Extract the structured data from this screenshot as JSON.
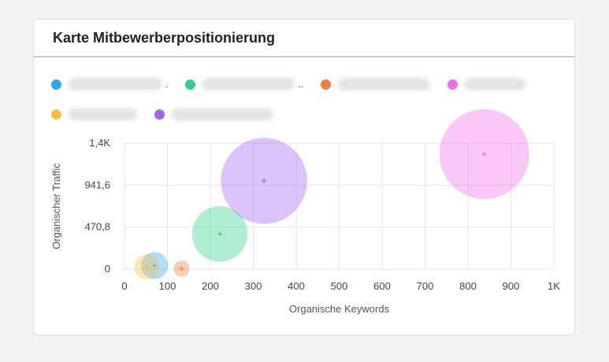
{
  "card": {
    "title": "Karte Mitbewerberpositionierung"
  },
  "legend": {
    "rows": [
      [
        {
          "color": "#2ea8f5",
          "suffix": "."
        },
        {
          "color": "#2ed18a",
          "suffix": ".."
        },
        {
          "color": "#f47c3c",
          "suffix": ""
        },
        {
          "color": "#ee6ee8",
          "suffix": ""
        }
      ],
      [
        {
          "color": "#f9bf3b",
          "suffix": ""
        },
        {
          "color": "#a363f2",
          "suffix": ""
        }
      ]
    ]
  },
  "chart_data": {
    "type": "scatter",
    "title": "",
    "xlabel": "Organische Keywords",
    "ylabel": "Organischer Traffic",
    "xlim": [
      0,
      1000
    ],
    "ylim": [
      0,
      1412.4
    ],
    "x_ticks": [
      "0",
      "100",
      "200",
      "300",
      "400",
      "500",
      "600",
      "700",
      "800",
      "900",
      "1K"
    ],
    "y_ticks": [
      "0",
      "470,8",
      "941,6",
      "1,4K"
    ],
    "grid": true,
    "legend_position": "top",
    "series": [
      {
        "color": "#2ea8f5",
        "x": 70,
        "y": 40,
        "size": 0.3
      },
      {
        "color": "#2ed18a",
        "x": 222,
        "y": 395,
        "size": 0.62
      },
      {
        "color": "#f47c3c",
        "x": 133,
        "y": 5,
        "size": 0.18
      },
      {
        "color": "#ee6ee8",
        "x": 838,
        "y": 1290,
        "size": 1.0
      },
      {
        "color": "#f9bf3b",
        "x": 52,
        "y": 25,
        "size": 0.28
      },
      {
        "color": "#a363f2",
        "x": 325,
        "y": 990,
        "size": 0.96
      }
    ]
  }
}
